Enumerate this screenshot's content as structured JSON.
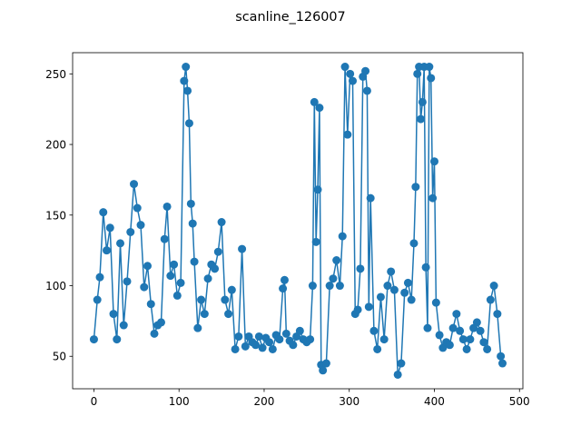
{
  "chart_data": {
    "type": "line",
    "title": "scanline_126007",
    "xlabel": "",
    "ylabel": "",
    "xlim": [
      -25,
      504
    ],
    "ylim": [
      27,
      265
    ],
    "xticks": [
      0,
      100,
      200,
      300,
      400,
      500
    ],
    "yticks": [
      50,
      100,
      150,
      200,
      250
    ],
    "grid": false,
    "markers": true,
    "series": [
      {
        "color": "#1f77b4",
        "x": [
          0,
          4,
          7,
          11,
          15,
          19,
          23,
          27,
          31,
          35,
          39,
          43,
          47,
          51,
          55,
          59,
          63,
          67,
          71,
          75,
          79,
          83,
          86,
          90,
          94,
          98,
          102,
          106,
          108,
          110,
          112,
          114,
          116,
          118,
          122,
          126,
          130,
          134,
          138,
          142,
          146,
          150,
          154,
          158,
          162,
          166,
          170,
          174,
          178,
          182,
          186,
          190,
          194,
          198,
          202,
          206,
          210,
          214,
          218,
          222,
          224,
          226,
          230,
          234,
          238,
          242,
          246,
          250,
          254,
          257,
          259,
          261,
          263,
          265,
          267,
          269,
          273,
          277,
          281,
          285,
          289,
          292,
          295,
          298,
          301,
          304,
          307,
          310,
          313,
          316,
          319,
          321,
          323,
          325,
          329,
          333,
          337,
          341,
          345,
          349,
          353,
          357,
          361,
          365,
          369,
          373,
          376,
          378,
          380,
          382,
          384,
          386,
          388,
          390,
          392,
          394,
          396,
          398,
          400,
          402,
          406,
          410,
          414,
          418,
          422,
          426,
          430,
          434,
          438,
          442,
          446,
          450,
          454,
          458,
          462,
          466,
          470,
          474,
          478,
          480
        ],
        "values": [
          62,
          90,
          106,
          152,
          125,
          141,
          80,
          62,
          130,
          72,
          103,
          138,
          172,
          155,
          143,
          99,
          114,
          87,
          66,
          72,
          74,
          133,
          156,
          107,
          115,
          93,
          102,
          245,
          255,
          238,
          215,
          158,
          144,
          117,
          70,
          90,
          80,
          105,
          115,
          112,
          124,
          145,
          90,
          80,
          97,
          55,
          64,
          126,
          57,
          64,
          60,
          58,
          64,
          56,
          63,
          60,
          55,
          65,
          62,
          98,
          104,
          66,
          61,
          58,
          64,
          68,
          62,
          60,
          62,
          100,
          230,
          131,
          168,
          226,
          44,
          40,
          45,
          100,
          105,
          118,
          100,
          135,
          255,
          207,
          250,
          245,
          80,
          83,
          112,
          248,
          252,
          238,
          85,
          162,
          68,
          55,
          92,
          62,
          100,
          110,
          97,
          37,
          45,
          95,
          102,
          90,
          130,
          170,
          250,
          255,
          218,
          230,
          255,
          113,
          70,
          255,
          247,
          162,
          188,
          88,
          65,
          56,
          60,
          58,
          70,
          80,
          68,
          62,
          55,
          62,
          70,
          74,
          68,
          60,
          55,
          90,
          100,
          80,
          50,
          45
        ]
      }
    ]
  }
}
